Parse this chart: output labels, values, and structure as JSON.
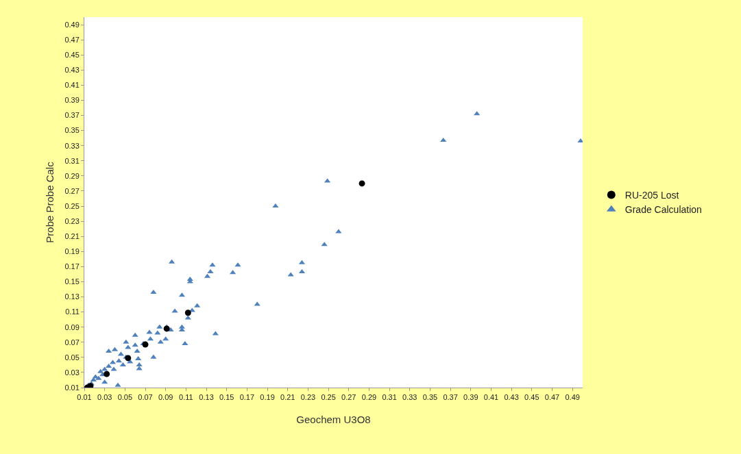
{
  "chart_data": {
    "type": "scatter",
    "xlabel": "Geochem U3O8",
    "ylabel": "Probe Probe Calc",
    "xlim": [
      0.01,
      0.5
    ],
    "ylim": [
      0.01,
      0.5
    ],
    "xticks": [
      0.01,
      0.03,
      0.05,
      0.07,
      0.09,
      0.11,
      0.13,
      0.15,
      0.17,
      0.19,
      0.21,
      0.23,
      0.25,
      0.27,
      0.29,
      0.31,
      0.33,
      0.35,
      0.37,
      0.39,
      0.41,
      0.43,
      0.45,
      0.47,
      0.49
    ],
    "yticks": [
      0.01,
      0.03,
      0.05,
      0.07,
      0.09,
      0.11,
      0.13,
      0.15,
      0.17,
      0.19,
      0.21,
      0.23,
      0.25,
      0.27,
      0.29,
      0.31,
      0.33,
      0.35,
      0.37,
      0.39,
      0.41,
      0.43,
      0.45,
      0.47,
      0.49
    ],
    "grid": false,
    "legend": "right",
    "series": [
      {
        "name": "RU-205 Lost",
        "color": "#000000",
        "marker": "circle",
        "x": [
          0.013,
          0.016,
          0.032,
          0.053,
          0.07,
          0.091,
          0.112,
          0.283
        ],
        "values": [
          0.01,
          0.012,
          0.028,
          0.049,
          0.067,
          0.088,
          0.109,
          0.28
        ]
      },
      {
        "name": "Grade Calculation",
        "color": "#4f81bd",
        "marker": "triangle",
        "x": [
          0.396,
          0.363,
          0.498,
          0.249,
          0.198,
          0.26,
          0.246,
          0.224,
          0.224,
          0.213,
          0.18,
          0.161,
          0.096,
          0.136,
          0.134,
          0.156,
          0.131,
          0.114,
          0.114,
          0.078,
          0.106,
          0.121,
          0.099,
          0.116,
          0.112,
          0.091,
          0.084,
          0.095,
          0.106,
          0.106,
          0.139,
          0.109,
          0.074,
          0.082,
          0.06,
          0.051,
          0.06,
          0.068,
          0.075,
          0.09,
          0.085,
          0.04,
          0.034,
          0.053,
          0.046,
          0.062,
          0.051,
          0.063,
          0.078,
          0.064,
          0.064,
          0.044,
          0.038,
          0.034,
          0.03,
          0.026,
          0.021,
          0.019,
          0.024,
          0.017,
          0.043,
          0.03,
          0.048,
          0.055,
          0.039,
          0.028,
          0.014
        ],
        "values": [
          0.372,
          0.337,
          0.336,
          0.283,
          0.25,
          0.216,
          0.199,
          0.175,
          0.163,
          0.159,
          0.12,
          0.172,
          0.176,
          0.172,
          0.163,
          0.162,
          0.157,
          0.153,
          0.15,
          0.136,
          0.132,
          0.118,
          0.111,
          0.112,
          0.102,
          0.09,
          0.09,
          0.086,
          0.09,
          0.086,
          0.081,
          0.068,
          0.083,
          0.082,
          0.079,
          0.07,
          0.066,
          0.068,
          0.074,
          0.074,
          0.07,
          0.06,
          0.058,
          0.063,
          0.054,
          0.058,
          0.05,
          0.048,
          0.05,
          0.04,
          0.035,
          0.045,
          0.043,
          0.038,
          0.034,
          0.031,
          0.024,
          0.02,
          0.022,
          0.015,
          0.013,
          0.017,
          0.04,
          0.044,
          0.034,
          0.027,
          0.013
        ]
      }
    ]
  }
}
